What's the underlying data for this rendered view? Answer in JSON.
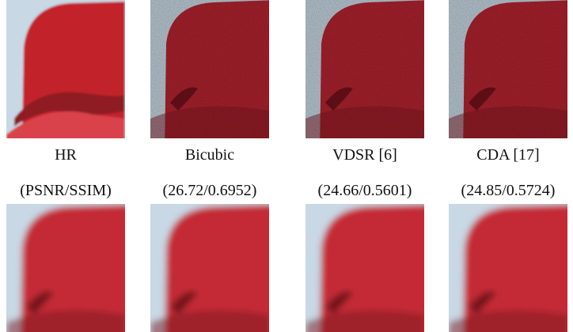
{
  "figure": {
    "columns": [
      {
        "name": "HR",
        "metrics": "(PSNR/SSIM)"
      },
      {
        "name": "Bicubic",
        "metrics": "(26.72/0.6952)"
      },
      {
        "name": "VDSR [6]",
        "metrics": "(24.66/0.5601)"
      },
      {
        "name": "CDA [17]",
        "metrics": "(24.85/0.5724)"
      }
    ]
  }
}
